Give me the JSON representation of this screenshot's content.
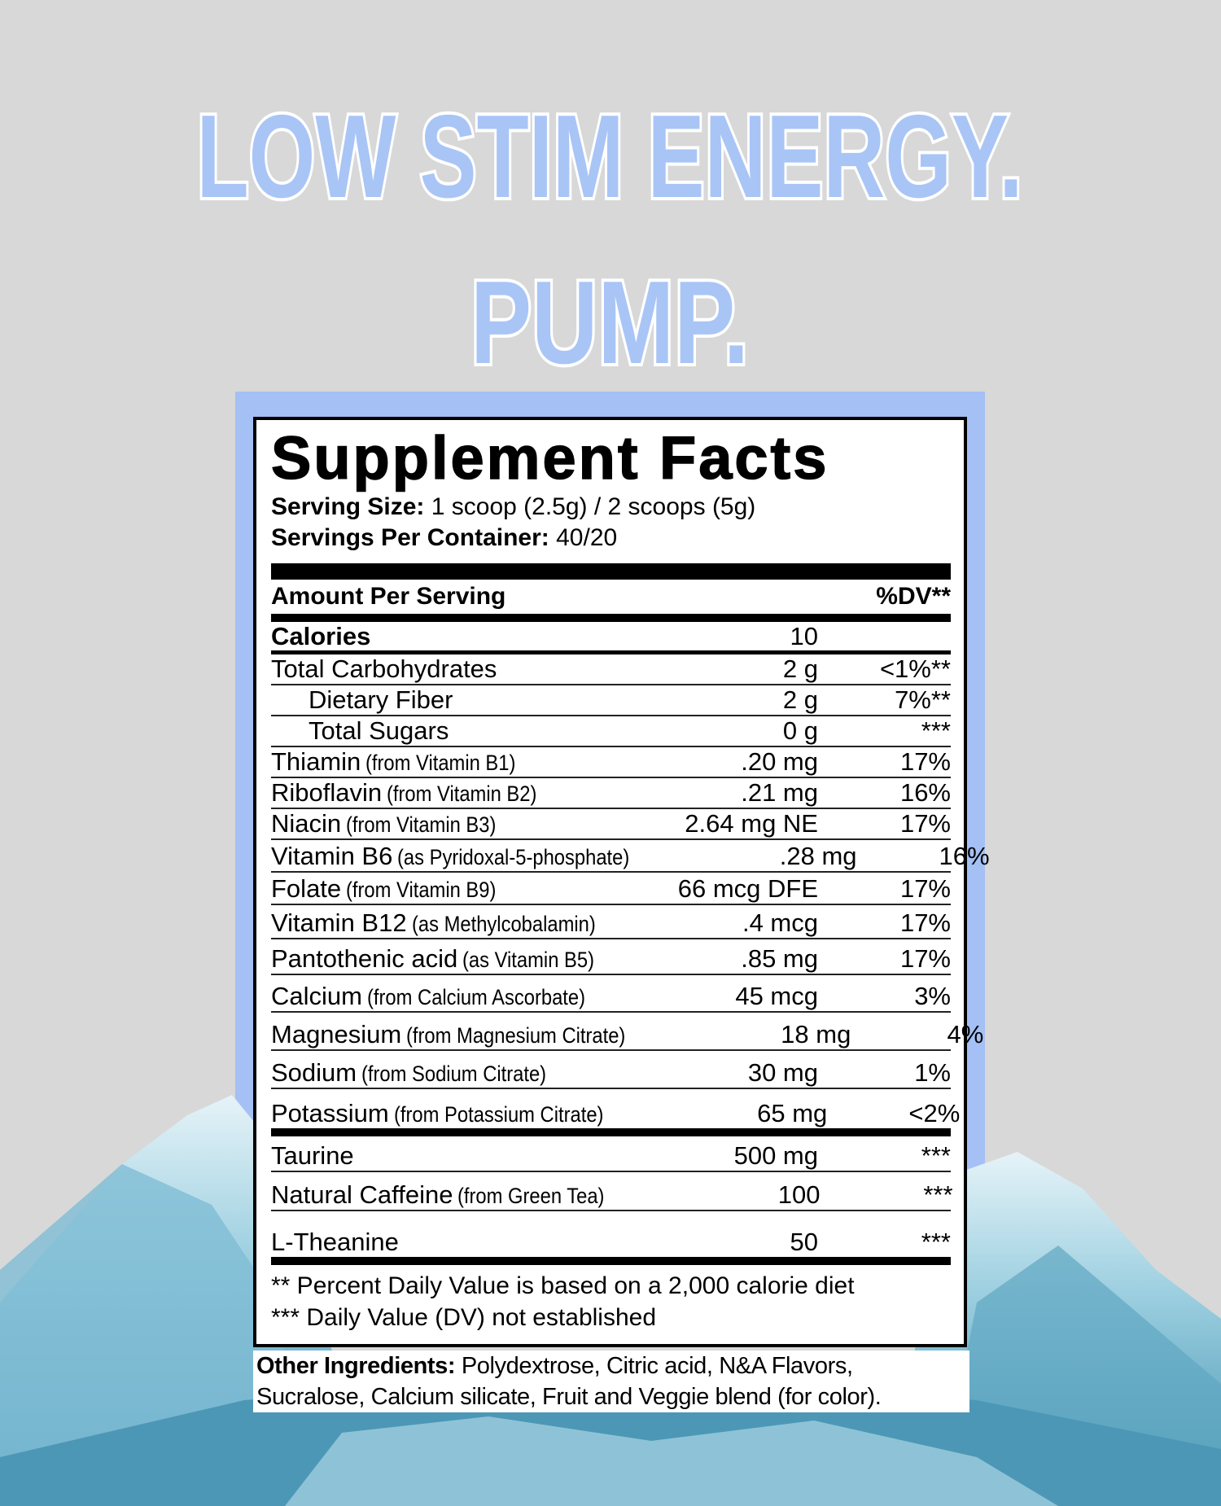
{
  "headline": {
    "line1": "LOW STIM ENERGY.",
    "line2": "PUMP."
  },
  "label": {
    "title": "Supplement Facts",
    "serving_size": {
      "label": "Serving Size:",
      "value": "1 scoop (2.5g) / 2 scoops (5g)"
    },
    "servings_per_container": {
      "label": "Servings Per Container:",
      "value": "40/20"
    },
    "header": {
      "amount": "Amount Per Serving",
      "dv": "%DV**"
    },
    "rows": [
      {
        "name": "Calories",
        "amount": "10",
        "bold": true
      },
      {
        "name": "Total Carbohydrates",
        "amount": "2 g",
        "dv": "<1%**"
      },
      {
        "name": "Dietary Fiber",
        "amount": "2 g",
        "dv": "7%**",
        "indent": true
      },
      {
        "name": "Total Sugars",
        "amount": "0 g",
        "dv": "***",
        "indent": true
      },
      {
        "name": "Thiamin",
        "source": "(from Vitamin B1)",
        "amount": ".20 mg",
        "dv": "17%"
      },
      {
        "name": "Riboflavin",
        "source": "(from Vitamin B2)",
        "amount": ".21 mg",
        "dv": "16%"
      },
      {
        "name": "Niacin",
        "source": "(from Vitamin B3)",
        "amount": "2.64 mg NE",
        "dv": "17%"
      },
      {
        "name": "Vitamin B6",
        "source": "(as Pyridoxal-5-phosphate)",
        "amount": ".28 mg",
        "dv": "16%"
      },
      {
        "name": "Folate",
        "source": "(from Vitamin B9)",
        "amount": "66 mcg DFE",
        "dv": "17%"
      },
      {
        "name": "Vitamin B12",
        "source": "(as Methylcobalamin)",
        "amount": ".4 mcg",
        "dv": "17%"
      },
      {
        "name": "Pantothenic acid",
        "source": "(as Vitamin B5)",
        "amount": ".85 mg",
        "dv": "17%"
      },
      {
        "name": "Calcium",
        "source": "(from Calcium Ascorbate)",
        "amount": "45 mcg",
        "dv": "3%"
      },
      {
        "name": "Magnesium",
        "source": "(from Magnesium Citrate)",
        "amount": "18 mg",
        "dv": "4%"
      },
      {
        "name": "Sodium",
        "source": "(from Sodium Citrate)",
        "amount": "30 mg",
        "dv": "1%"
      },
      {
        "name": "Potassium",
        "source": "(from Potassium Citrate)",
        "amount": "65 mg",
        "dv": "<2%",
        "thick_below": true
      },
      {
        "name": "Taurine",
        "amount": "500 mg",
        "dv": "***"
      },
      {
        "name": "Natural Caffeine",
        "source": "(from Green Tea)",
        "amount": "100",
        "dv": "***"
      },
      {
        "name": "L-Theanine",
        "amount": "50",
        "dv": "***",
        "thick_below": true
      }
    ],
    "footnotes": [
      "** Percent Daily Value is based on a 2,000 calorie diet",
      "*** Daily Value (DV) not established"
    ],
    "other_ingredients": {
      "label": "Other Ingredients:",
      "text": "Polydextrose, Citric acid, N&A Flavors, Sucralose, Calcium silicate, Fruit and Veggie blend (for color)."
    }
  }
}
